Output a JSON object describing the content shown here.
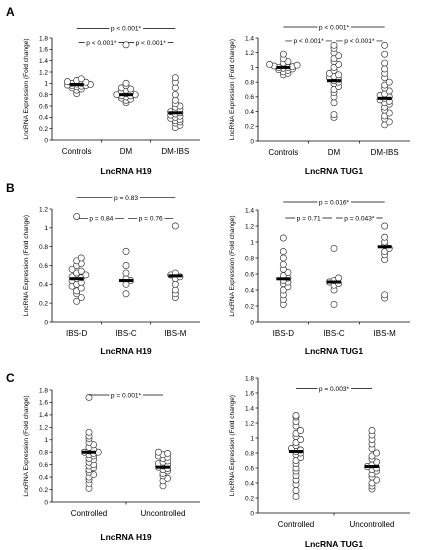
{
  "figure": {
    "panel_letters": [
      "A",
      "B",
      "C"
    ]
  },
  "chart_data": [
    {
      "type": "scatter",
      "panel": "A",
      "xlabel": "LncRNA H19",
      "ylabel": "LncRNA Expression  (Fold change)",
      "ylim": [
        0,
        1.8
      ],
      "yticks": [
        "0",
        "0.2",
        "0.4",
        "0.6",
        "0.8",
        "1",
        "1.2",
        "1.4",
        "1.6",
        "1.8"
      ],
      "categories": [
        "Controls",
        "DM",
        "DM-IBS"
      ],
      "medians": [
        0.98,
        0.8,
        0.48
      ],
      "points": [
        [
          0.82,
          0.88,
          0.9,
          0.92,
          0.94,
          0.95,
          0.96,
          0.96,
          0.97,
          0.98,
          0.99,
          1.0,
          1.0,
          1.02,
          1.03,
          1.05,
          1.08
        ],
        [
          0.66,
          0.7,
          0.72,
          0.74,
          0.76,
          0.78,
          0.78,
          0.8,
          0.8,
          0.82,
          0.84,
          0.86,
          0.88,
          0.9,
          0.92,
          0.96,
          1.0,
          1.68
        ],
        [
          0.22,
          0.26,
          0.3,
          0.32,
          0.34,
          0.36,
          0.38,
          0.4,
          0.42,
          0.44,
          0.46,
          0.48,
          0.5,
          0.52,
          0.54,
          0.58,
          0.6,
          0.64,
          0.7,
          0.8,
          0.92,
          1.02,
          1.1
        ]
      ],
      "comparisons": [
        {
          "from": 0,
          "to": 2,
          "label": "p < 0.001*",
          "y": 1.97
        },
        {
          "from": 0,
          "to": 1,
          "label": "p < 0.001*",
          "y": 1.72
        },
        {
          "from": 1,
          "to": 2,
          "label": "p < 0.001*",
          "y": 1.72
        }
      ]
    },
    {
      "type": "scatter",
      "panel": "A",
      "xlabel": "LncRNA TUG1",
      "ylabel": "LncRNA Expression (Fold change)",
      "ylim": [
        0,
        1.4
      ],
      "yticks": [
        "0",
        "0.2",
        "0.4",
        "0.6",
        "0.8",
        "1",
        "1.2",
        "1.4"
      ],
      "categories": [
        "Controls",
        "DM",
        "DM-IBS"
      ],
      "medians": [
        1.0,
        0.82,
        0.58
      ],
      "points": [
        [
          0.9,
          0.92,
          0.94,
          0.96,
          0.97,
          0.98,
          0.99,
          1.0,
          1.0,
          1.01,
          1.02,
          1.03,
          1.04,
          1.06,
          1.08,
          1.12,
          1.18
        ],
        [
          0.32,
          0.36,
          0.52,
          0.6,
          0.66,
          0.7,
          0.74,
          0.78,
          0.8,
          0.82,
          0.84,
          0.86,
          0.88,
          0.9,
          0.92,
          0.96,
          1.0,
          1.04,
          1.08,
          1.12,
          1.16,
          1.2,
          1.26,
          1.3
        ],
        [
          0.22,
          0.26,
          0.3,
          0.34,
          0.38,
          0.42,
          0.46,
          0.5,
          0.52,
          0.54,
          0.56,
          0.58,
          0.6,
          0.62,
          0.64,
          0.68,
          0.72,
          0.76,
          0.8,
          0.86,
          0.92,
          0.98,
          1.06,
          1.18,
          1.3
        ]
      ],
      "comparisons": [
        {
          "from": 0,
          "to": 2,
          "label": "p < 0.001*",
          "y": 1.55
        },
        {
          "from": 0,
          "to": 1,
          "label": "p < 0.001*",
          "y": 1.36
        },
        {
          "from": 1,
          "to": 2,
          "label": "p < 0.001*",
          "y": 1.36
        }
      ]
    },
    {
      "type": "scatter",
      "panel": "B",
      "xlabel": "LncRNA H19",
      "ylabel": "LncRNA Expression (Fold change)",
      "ylim": [
        0,
        1.2
      ],
      "yticks": [
        "0",
        "0.2",
        "0.4",
        "0.6",
        "0.8",
        "1",
        "1.2"
      ],
      "categories": [
        "IBS-D",
        "IBS-C",
        "IBS-M"
      ],
      "medians": [
        0.46,
        0.44,
        0.49
      ],
      "points": [
        [
          0.22,
          0.26,
          0.3,
          0.33,
          0.36,
          0.38,
          0.4,
          0.42,
          0.44,
          0.46,
          0.47,
          0.48,
          0.5,
          0.52,
          0.54,
          0.56,
          0.6,
          0.62,
          0.65,
          0.68,
          1.12
        ],
        [
          0.3,
          0.4,
          0.44,
          0.46,
          0.52,
          0.6,
          0.75
        ],
        [
          0.26,
          0.3,
          0.34,
          0.4,
          0.46,
          0.48,
          0.5,
          0.52,
          1.02
        ]
      ],
      "comparisons": [
        {
          "from": 0,
          "to": 2,
          "label": "p = 0.83",
          "y": 1.32
        },
        {
          "from": 0,
          "to": 1,
          "label": "p = 0.84",
          "y": 1.1
        },
        {
          "from": 1,
          "to": 2,
          "label": "p = 0.76",
          "y": 1.1
        }
      ]
    },
    {
      "type": "scatter",
      "panel": "B",
      "xlabel": "LncRNA TUG1",
      "ylabel": "LncRNA Expression (Fold change)",
      "ylim": [
        0,
        1.4
      ],
      "yticks": [
        "0",
        "0.2",
        "0.4",
        "0.6",
        "0.8",
        "1",
        "1.2",
        "1.4"
      ],
      "categories": [
        "IBS-D",
        "IBS-C",
        "IBS-M"
      ],
      "medians": [
        0.54,
        0.5,
        0.94
      ],
      "points": [
        [
          0.22,
          0.28,
          0.34,
          0.4,
          0.44,
          0.48,
          0.5,
          0.52,
          0.55,
          0.58,
          0.62,
          0.66,
          0.72,
          0.8,
          0.88,
          1.05
        ],
        [
          0.22,
          0.4,
          0.46,
          0.48,
          0.5,
          0.52,
          0.55,
          0.92
        ],
        [
          0.3,
          0.34,
          0.78,
          0.84,
          0.88,
          0.92,
          0.96,
          1.0,
          1.06,
          1.2
        ]
      ],
      "comparisons": [
        {
          "from": 0,
          "to": 2,
          "label": "p = 0.016*",
          "y": 1.5
        },
        {
          "from": 0,
          "to": 1,
          "label": "p = 0.71",
          "y": 1.3
        },
        {
          "from": 1,
          "to": 2,
          "label": "p = 0.043*",
          "y": 1.3
        }
      ]
    },
    {
      "type": "scatter",
      "panel": "C",
      "xlabel": "LncRNA H19",
      "ylabel": "LncRNA Expression  (Fold change)",
      "ylim": [
        0,
        1.8
      ],
      "yticks": [
        "0",
        "0.2",
        "0.4",
        "0.6",
        "0.8",
        "1",
        "1.2",
        "1.4",
        "1.6",
        "1.8"
      ],
      "categories": [
        "Controlled",
        "Uncontrolled"
      ],
      "medians": [
        0.8,
        0.56
      ],
      "points": [
        [
          0.22,
          0.3,
          0.36,
          0.4,
          0.44,
          0.48,
          0.52,
          0.55,
          0.58,
          0.6,
          0.64,
          0.68,
          0.7,
          0.74,
          0.76,
          0.78,
          0.8,
          0.8,
          0.82,
          0.84,
          0.88,
          0.92,
          0.96,
          1.02,
          1.06,
          1.12,
          1.68
        ],
        [
          0.26,
          0.34,
          0.38,
          0.42,
          0.46,
          0.5,
          0.52,
          0.54,
          0.56,
          0.58,
          0.6,
          0.62,
          0.64,
          0.66,
          0.7,
          0.72,
          0.74,
          0.76,
          0.78,
          0.8
        ]
      ],
      "comparisons": [
        {
          "from": 0,
          "to": 1,
          "label": "p = 0.001*",
          "y": 1.72
        }
      ]
    },
    {
      "type": "scatter",
      "panel": "C",
      "xlabel": "LncRNA TUG1",
      "ylabel": "LncRNA Expression (Fold change)",
      "ylim": [
        0,
        1.8
      ],
      "yticks": [
        "0",
        "0.2",
        "0.4",
        "0.6",
        "0.8",
        "1",
        "1.2",
        "1.4",
        "1.6",
        "1.8"
      ],
      "categories": [
        "Controlled",
        "Uncontrolled"
      ],
      "medians": [
        0.82,
        0.62
      ],
      "points": [
        [
          0.22,
          0.3,
          0.38,
          0.44,
          0.5,
          0.56,
          0.6,
          0.66,
          0.7,
          0.74,
          0.78,
          0.8,
          0.82,
          0.84,
          0.86,
          0.9,
          0.94,
          0.98,
          1.02,
          1.06,
          1.1,
          1.16,
          1.22,
          1.28,
          1.3
        ],
        [
          0.32,
          0.36,
          0.4,
          0.44,
          0.48,
          0.52,
          0.56,
          0.58,
          0.6,
          0.62,
          0.64,
          0.68,
          0.72,
          0.76,
          0.8,
          0.86,
          0.92,
          0.98,
          1.04,
          1.1
        ]
      ],
      "comparisons": [
        {
          "from": 0,
          "to": 1,
          "label": "p = 0.003*",
          "y": 1.66
        }
      ]
    }
  ]
}
